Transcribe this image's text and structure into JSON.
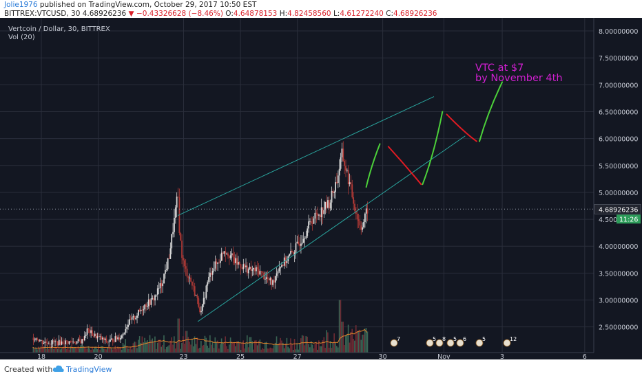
{
  "header": {
    "author": "Jolie1976",
    "published": "published on TradingView.com, October 29, 2017 10:50 EST",
    "symbol": "BITTREX:VTCUSD, 30",
    "last": "4.68926236",
    "change_arrow": "▼",
    "change": "−0.43326628 (−8.46%)",
    "o_label": "O:",
    "o": "4.64878153",
    "h_label": "H:",
    "h": "4.82458560",
    "l_label": "L:",
    "l": "4.61272240",
    "c_label": "C:",
    "c": "4.68926236"
  },
  "legend": {
    "main": "Vertcoin / Dollar, 30, BITTREX",
    "vol": "Vol (20)"
  },
  "annotation": [
    "VTC at $7",
    "by November 4th"
  ],
  "price_label": "4.68926236",
  "timer_label": "11:26",
  "events": [
    "7",
    "5",
    "8",
    "5",
    "6",
    "5",
    "12"
  ],
  "footer": {
    "created": "Created with",
    "brand": "TradingView"
  },
  "colors": {
    "background": "#131722",
    "grid": "#2a2e3b",
    "up": "#d8d8d8",
    "down": "#b23a36",
    "channel": "#2aa7a0",
    "projection_up": "#4cd13a",
    "projection_down": "#e21b23",
    "annotation": "#d21fd2",
    "ma": "#e6852a"
  },
  "chart_data": {
    "type": "candlestick",
    "symbol": "BITTREX:VTCUSD",
    "interval": "30",
    "title": "Vertcoin / Dollar, 30, BITTREX",
    "y_ticks": [
      "8.00000000",
      "7.50000000",
      "7.00000000",
      "6.50000000",
      "6.00000000",
      "5.50000000",
      "5.00000000",
      "4.50000000",
      "4.00000000",
      "3.50000000",
      "3.00000000",
      "2.50000000"
    ],
    "x_ticks": [
      "18",
      "20",
      "23",
      "25",
      "27",
      "30",
      "Nov",
      "3",
      "6"
    ],
    "ylim": [
      2.1,
      8.3
    ],
    "price_path": [
      [
        17.8,
        2.3
      ],
      [
        18.0,
        2.22
      ],
      [
        18.5,
        2.21
      ],
      [
        19.0,
        2.22
      ],
      [
        19.4,
        2.23
      ],
      [
        19.6,
        2.45
      ],
      [
        19.8,
        2.35
      ],
      [
        20.0,
        2.3
      ],
      [
        20.3,
        2.22
      ],
      [
        20.8,
        2.33
      ],
      [
        21.0,
        2.55
      ],
      [
        21.3,
        2.7
      ],
      [
        21.6,
        2.9
      ],
      [
        21.9,
        3.0
      ],
      [
        22.2,
        3.3
      ],
      [
        22.45,
        3.75
      ],
      [
        22.6,
        4.3
      ],
      [
        22.78,
        4.96
      ],
      [
        22.82,
        4.4
      ],
      [
        22.9,
        3.9
      ],
      [
        23.0,
        3.6
      ],
      [
        23.2,
        3.4
      ],
      [
        23.4,
        3.1
      ],
      [
        23.6,
        2.75
      ],
      [
        23.8,
        3.3
      ],
      [
        24.0,
        3.6
      ],
      [
        24.2,
        3.7
      ],
      [
        24.4,
        3.95
      ],
      [
        24.6,
        3.85
      ],
      [
        24.8,
        3.7
      ],
      [
        25.0,
        3.65
      ],
      [
        25.3,
        3.55
      ],
      [
        25.6,
        3.55
      ],
      [
        25.9,
        3.4
      ],
      [
        26.1,
        3.3
      ],
      [
        26.3,
        3.6
      ],
      [
        26.6,
        3.75
      ],
      [
        26.9,
        3.95
      ],
      [
        27.2,
        4.2
      ],
      [
        27.5,
        4.5
      ],
      [
        27.8,
        4.65
      ],
      [
        28.1,
        4.8
      ],
      [
        28.35,
        5.2
      ],
      [
        28.55,
        5.7
      ],
      [
        28.7,
        5.4
      ],
      [
        28.9,
        4.95
      ],
      [
        29.1,
        4.5
      ],
      [
        29.25,
        4.35
      ],
      [
        29.45,
        4.69
      ]
    ],
    "volume_spikes": [
      [
        22.8,
        0.55
      ],
      [
        23.1,
        0.35
      ],
      [
        28.5,
        0.85
      ],
      [
        28.55,
        0.5
      ],
      [
        29.1,
        0.35
      ]
    ],
    "channel_upper": [
      [
        22.8,
        4.57
      ],
      [
        31.8,
        6.78
      ]
    ],
    "channel_lower": [
      [
        23.5,
        2.6
      ],
      [
        32.9,
        6.05
      ]
    ],
    "projection": [
      {
        "dir": "up",
        "points": [
          [
            29.42,
            5.1
          ],
          [
            29.6,
            5.5
          ],
          [
            29.9,
            5.9
          ]
        ]
      },
      {
        "dir": "down",
        "points": [
          [
            30.2,
            5.85
          ],
          [
            30.8,
            5.5
          ],
          [
            31.35,
            5.15
          ]
        ]
      },
      {
        "dir": "up",
        "points": [
          [
            31.4,
            5.15
          ],
          [
            31.8,
            5.7
          ],
          [
            32.1,
            6.5
          ]
        ]
      },
      {
        "dir": "down",
        "points": [
          [
            32.25,
            6.45
          ],
          [
            32.9,
            6.1
          ],
          [
            33.3,
            5.95
          ]
        ]
      },
      {
        "dir": "up",
        "points": [
          [
            33.4,
            5.95
          ],
          [
            33.7,
            6.5
          ],
          [
            34.2,
            7.05
          ]
        ]
      }
    ],
    "current_price": 4.68926236
  }
}
